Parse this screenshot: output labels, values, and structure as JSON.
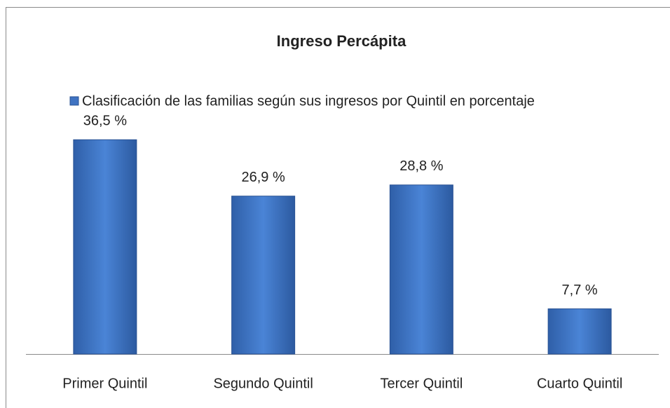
{
  "chart_data": {
    "type": "bar",
    "title": "Ingreso Percápita",
    "categories": [
      "Primer Quintil",
      "Segundo Quintil",
      "Tercer Quintil",
      "Cuarto Quintil"
    ],
    "series": [
      {
        "name": "Clasificación de las familias según sus ingresos por Quintil en porcentaje",
        "color": "#3f73c2",
        "values": [
          36.5,
          26.9,
          28.8,
          7.7
        ],
        "value_labels": [
          "36,5 %",
          "26,9 %",
          "28,8 %",
          "7,7 %"
        ]
      }
    ],
    "ylim": [
      0,
      40
    ],
    "legend": "top"
  }
}
